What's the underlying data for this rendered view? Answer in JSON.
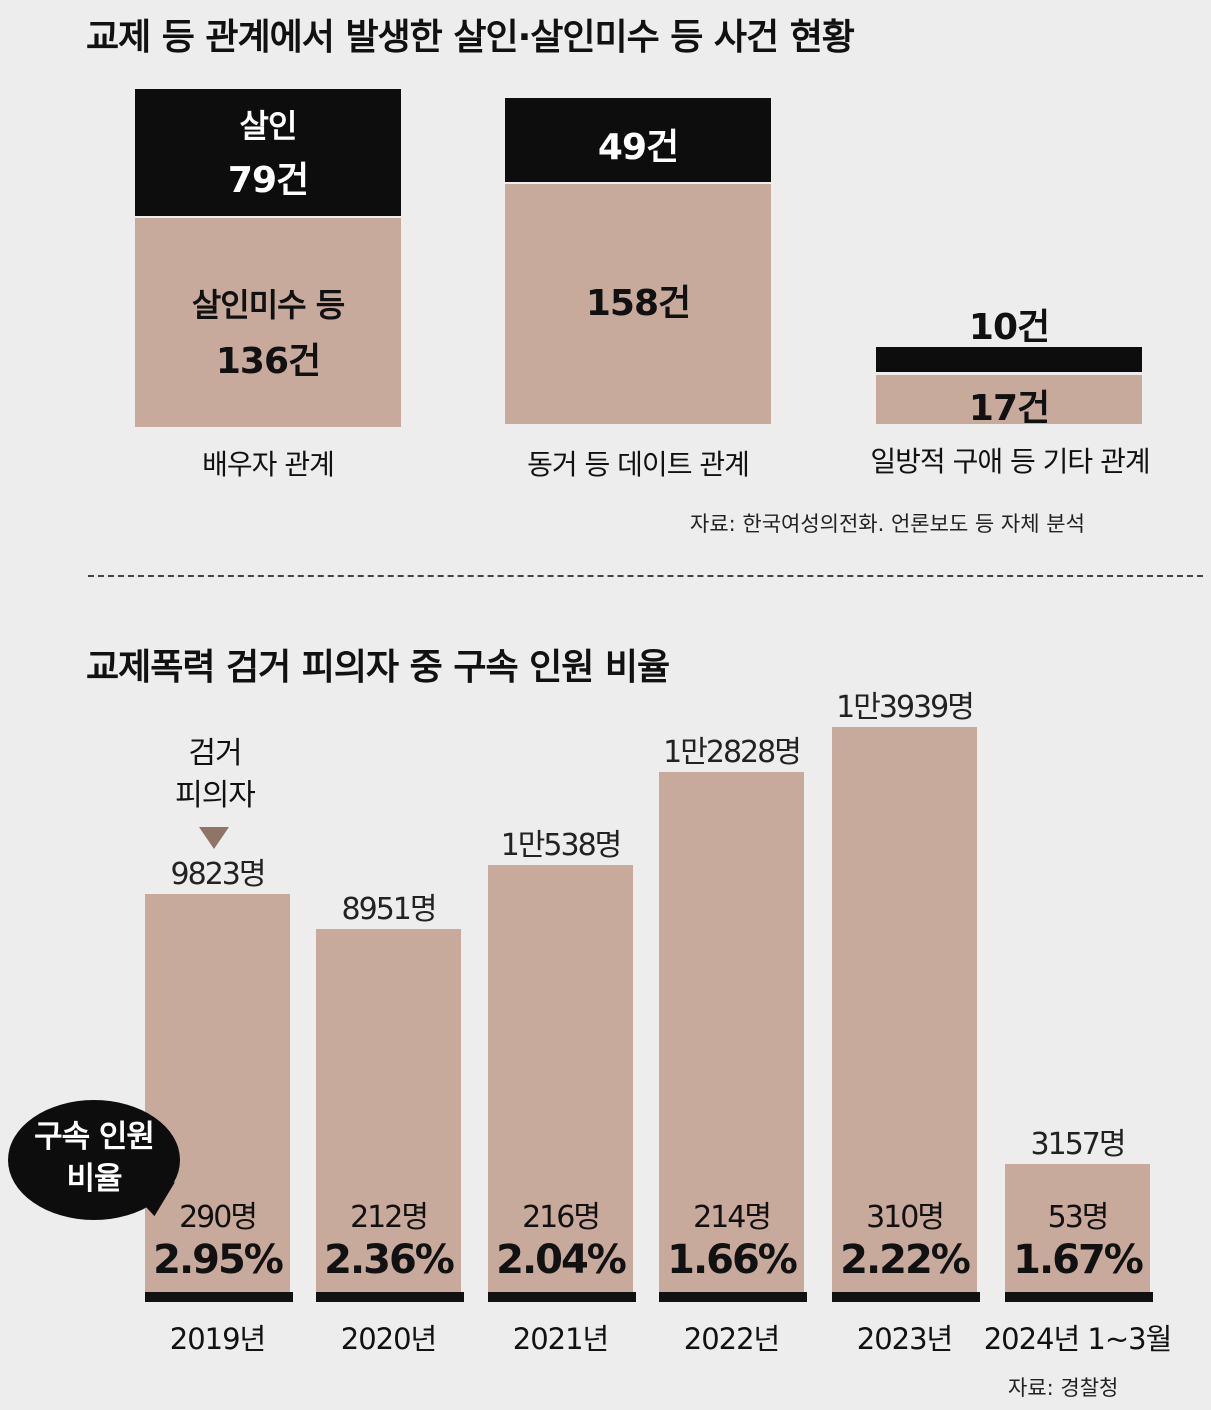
{
  "chart_data": [
    {
      "type": "bar",
      "stacked": true,
      "title": "교제 등 관계에서 발생한 살인·살인미수 등 사건 현황",
      "categories": [
        "배우자 관계",
        "동거 등 데이트 관계",
        "일방적 구애 등 기타 관계"
      ],
      "series": [
        {
          "name": "살인",
          "values": [
            79,
            49,
            10
          ],
          "labels": [
            "79건",
            "49건",
            "10건"
          ],
          "color": "#0d0d0d"
        },
        {
          "name": "살인미수 등",
          "values": [
            136,
            158,
            17
          ],
          "labels": [
            "136건",
            "158건",
            "17건"
          ],
          "color": "#c8aa9d"
        }
      ],
      "source": "자료: 한국여성의전화. 언론보도 등 자체 분석"
    },
    {
      "type": "bar",
      "title": "교제폭력 검거 피의자 중 구속 인원 비율",
      "categories": [
        "2019년",
        "2020년",
        "2021년",
        "2022년",
        "2023년",
        "2024년 1~3월"
      ],
      "series": [
        {
          "name": "검거 피의자",
          "values": [
            9823,
            8951,
            10538,
            12828,
            13939,
            3157
          ],
          "labels": [
            "9823명",
            "8951명",
            "1만538명",
            "1만2828명",
            "1만3939명",
            "3157명"
          ],
          "color": "#c8aa9d"
        },
        {
          "name": "구속 인원",
          "values": [
            290,
            212,
            216,
            214,
            310,
            53
          ],
          "labels": [
            "290명",
            "212명",
            "216명",
            "214명",
            "310명",
            "53명"
          ],
          "color": "#111111"
        }
      ],
      "ratios": [
        2.95,
        2.36,
        2.04,
        1.66,
        2.22,
        1.67
      ],
      "ratio_labels": [
        "2.95%",
        "2.36%",
        "2.04%",
        "1.66%",
        "2.22%",
        "1.67%"
      ],
      "annotation_total": "검거 피의자",
      "annotation_ratio": "구속 인원 비율",
      "source": "자료: 경찰청"
    }
  ],
  "labels": {
    "chart1_murder_header": "살인",
    "chart1_attempt_header": "살인미수 등",
    "chart2_note_line1": "검거",
    "chart2_note_line2": "피의자",
    "bubble_line1": "구속 인원",
    "bubble_line2": "비율"
  },
  "colors": {
    "background": "#ededed",
    "murder": "#0d0d0d",
    "attempt": "#c8aa9d",
    "text": "#111111"
  }
}
